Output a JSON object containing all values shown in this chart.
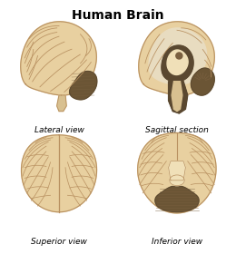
{
  "title": "Human Brain",
  "title_fontsize": 10,
  "title_fontweight": "bold",
  "labels": [
    "Lateral view",
    "Sagittal section",
    "Superior view",
    "Inferior view"
  ],
  "label_fontsize": 6.5,
  "label_fontstyle": "italic",
  "bg_color": "#ffffff",
  "brain_fill": "#e8d0a0",
  "brain_edge": "#b89060",
  "dark_brown": "#5a4830",
  "med_brown": "#7a6040",
  "light_tan": "#f0e0b8",
  "stem_color": "#d8c090",
  "inner_white": "#e8dcc0",
  "cerebellum_dark": "#6b5535"
}
